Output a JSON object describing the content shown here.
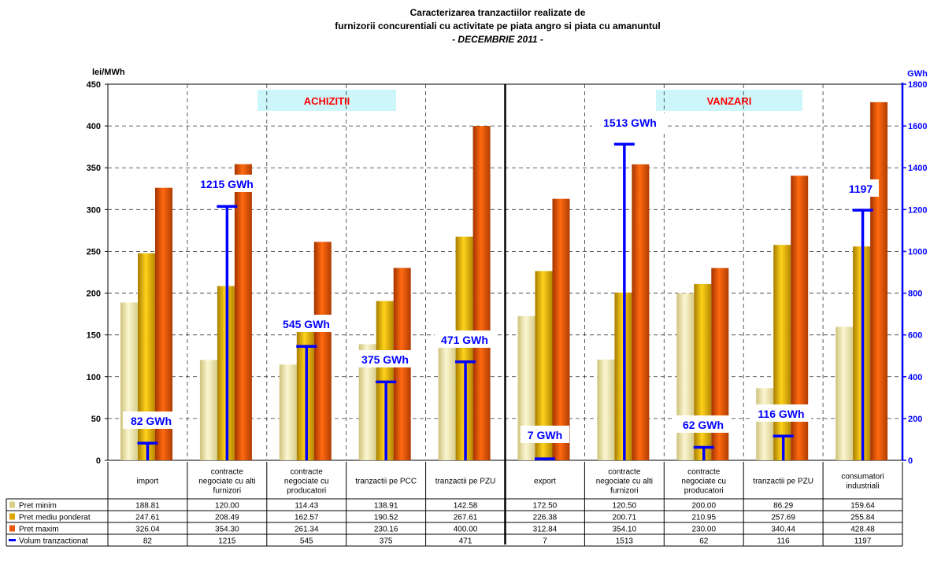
{
  "chart_data": {
    "type": "bar",
    "title_lines": [
      "Caracterizarea tranzactiilor realizate de",
      "furnizorii concurentiali cu activitate pe piata angro si piata cu amanuntul",
      "- DECEMBRIE 2011 -"
    ],
    "y_left_label": "lei/MWh",
    "y_right_label": "GWh",
    "ylim_left": [
      0,
      450
    ],
    "ylim_right": [
      0,
      1800
    ],
    "y_left_ticks": [
      0,
      50,
      100,
      150,
      200,
      250,
      300,
      350,
      400,
      450
    ],
    "y_right_ticks": [
      0,
      200,
      400,
      600,
      800,
      1000,
      1200,
      1400,
      1600,
      1800
    ],
    "grid": true,
    "sections": [
      {
        "label": "ACHIZITII",
        "from": 0,
        "to": 4
      },
      {
        "label": "VANZARI",
        "from": 5,
        "to": 9
      }
    ],
    "categories": [
      [
        "import"
      ],
      [
        "contracte",
        "negociate cu alti",
        "furnizori"
      ],
      [
        "contracte",
        "negociate cu",
        "producatori"
      ],
      [
        "tranzactii pe PCC"
      ],
      [
        "tranzactii pe PZU"
      ],
      [
        "export"
      ],
      [
        "contracte",
        "negociate cu alti",
        "furnizori"
      ],
      [
        "contracte",
        "negociate cu",
        "producatori"
      ],
      [
        "tranzactii pe PZU"
      ],
      [
        "consumatori",
        "industriali"
      ]
    ],
    "series": [
      {
        "name": "Pret minim",
        "axis": "left",
        "kind": "bar",
        "color": "#f2e8a4",
        "shade": "#b8ad5e",
        "values": [
          188.81,
          120.0,
          114.43,
          138.91,
          142.58,
          172.5,
          120.5,
          200.0,
          86.29,
          159.64
        ],
        "table_values": [
          "188.81",
          "120.00",
          "114.43",
          "138.91",
          "142.58",
          "172.50",
          "120.50",
          "200.00",
          "86.29",
          "159.64"
        ]
      },
      {
        "name": "Pret mediu ponderat",
        "axis": "left",
        "kind": "bar",
        "color": "#e8b800",
        "shade": "#9a7200",
        "values": [
          247.61,
          208.49,
          162.57,
          190.52,
          267.61,
          226.38,
          200.71,
          210.95,
          257.69,
          255.84
        ],
        "table_values": [
          "247.61",
          "208.49",
          "162.57",
          "190.52",
          "267.61",
          "226.38",
          "200.71",
          "210.95",
          "257.69",
          "255.84"
        ]
      },
      {
        "name": "Pret maxim",
        "axis": "left",
        "kind": "bar",
        "color": "#e8590c",
        "shade": "#9c3000",
        "values": [
          326.04,
          354.3,
          261.34,
          230.16,
          400.0,
          312.84,
          354.1,
          230.0,
          340.44,
          428.48
        ],
        "table_values": [
          "326.04",
          "354.30",
          "261.34",
          "230.16",
          "400.00",
          "312.84",
          "354.10",
          "230.00",
          "340.44",
          "428.48"
        ]
      },
      {
        "name": "Volum tranzactionat",
        "axis": "right",
        "kind": "marker",
        "color": "#0000ff",
        "values": [
          82,
          1215,
          545,
          375,
          471,
          7,
          1513,
          62,
          116,
          1197
        ],
        "table_values": [
          "82",
          "1215",
          "545",
          "375",
          "471",
          "7",
          "1513",
          "62",
          "116",
          "1197"
        ]
      }
    ],
    "volume_labels": [
      "82 GWh",
      "1215 GWh",
      "545 GWh",
      "375 GWh",
      "471 GWh",
      "7 GWh",
      "1513 GWh",
      "62 GWh",
      "116 GWh",
      "1197"
    ]
  }
}
